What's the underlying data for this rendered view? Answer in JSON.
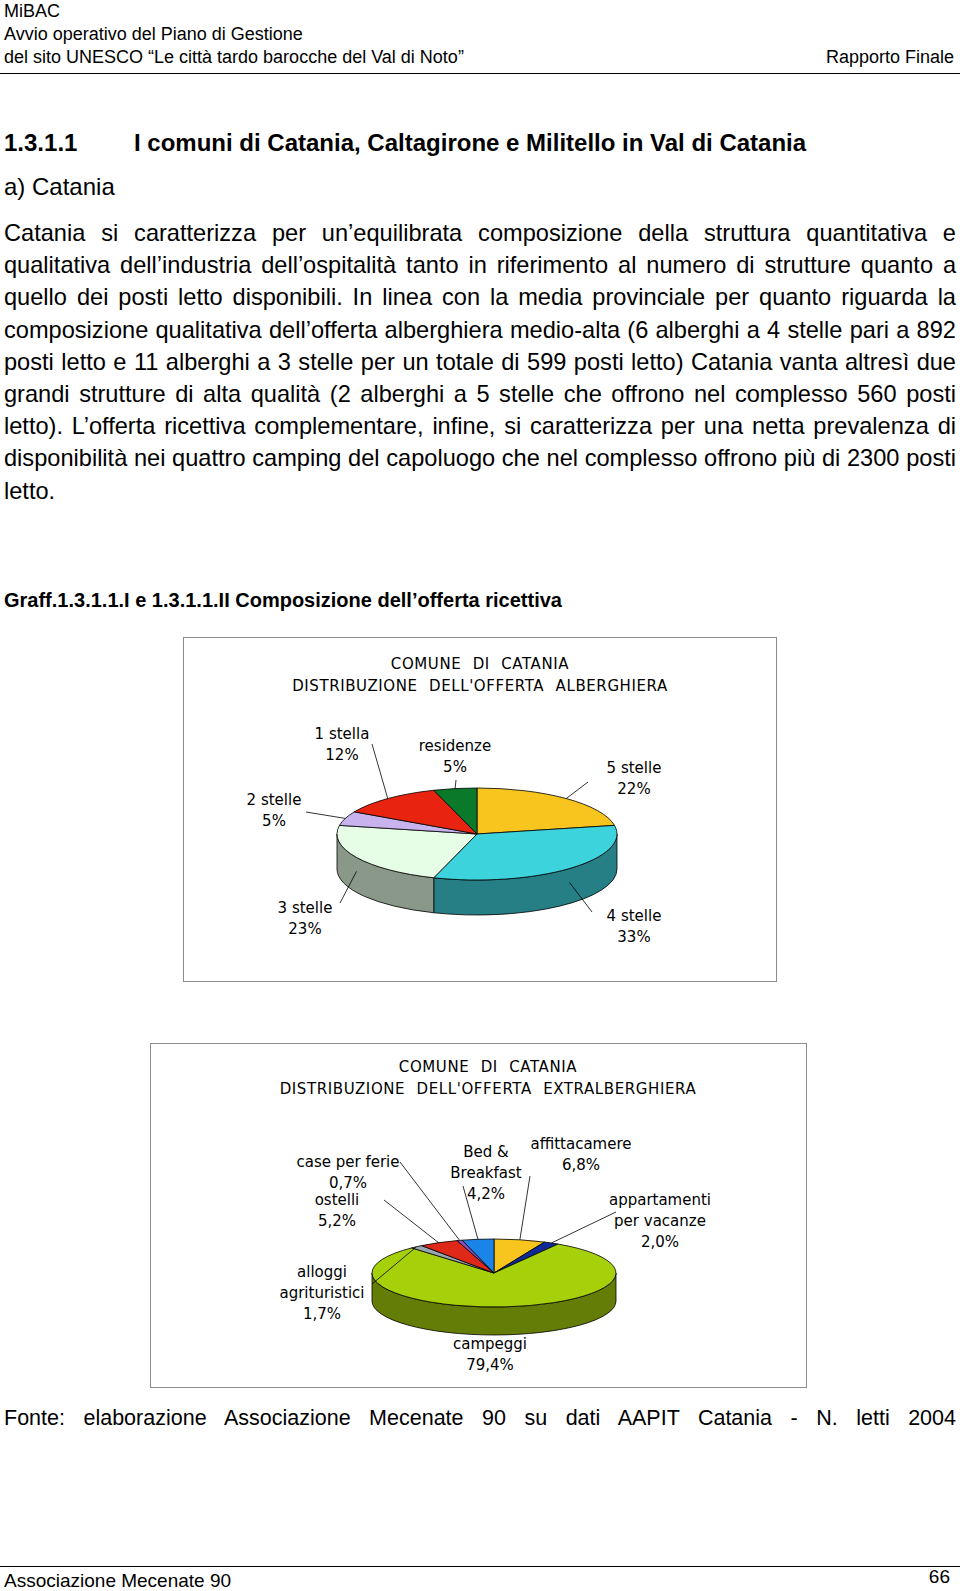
{
  "header": {
    "org": "MiBAC",
    "line1": "Avvio operativo del Piano di Gestione",
    "line2": "del sito UNESCO “Le città tardo barocche del Val di Noto”",
    "report": "Rapporto Finale"
  },
  "section": {
    "number": "1.3.1.1",
    "title": "I comuni di Catania, Caltagirone e Militello in Val di Catania",
    "subsection": "a) Catania",
    "paragraph": "Catania si caratterizza per un’equilibrata composizione della struttura quantitativa e qualitativa dell’industria dell’ospitalità tanto in riferimento al numero di strutture quanto a quello dei posti letto disponibili. In linea con la media provinciale per quanto riguarda la composizione qualitativa dell’offerta alberghiera medio-alta (6 alberghi a 4 stelle pari a 892 posti letto e 11 alberghi a 3 stelle per un totale di 599 posti letto) Catania vanta altresì due grandi strutture di alta qualità (2 alberghi a 5 stelle che offrono nel complesso 560 posti letto). L’offerta ricettiva complementare, infine, si caratterizza per una netta prevalenza di disponibilità nei quattro camping del capoluogo che nel complesso offrono più di 2300 posti letto."
  },
  "figure_caption": "Graff.1.3.1.1.I e 1.3.1.1.II Composizione dell’offerta ricettiva",
  "chart_data": [
    {
      "type": "pie",
      "title": "COMUNE DI CATANIA",
      "subtitle": "DISTRIBUZIONE DELL'OFFERTA ALBERGHIERA",
      "categories": [
        "5 stelle",
        "4 stelle",
        "3 stelle",
        "2 stelle",
        "1 stella",
        "residenze"
      ],
      "values": [
        22,
        33,
        23,
        5,
        12,
        5
      ],
      "value_labels": [
        "22%",
        "33%",
        "23%",
        "5%",
        "12%",
        "5%"
      ],
      "colors": [
        "#f7c51e",
        "#3dd3dc",
        "#e6fde6",
        "#c9b3ee",
        "#e8230f",
        "#0a7a2a"
      ],
      "data_labels": true
    },
    {
      "type": "pie",
      "title": "COMUNE DI CATANIA",
      "subtitle": "DISTRIBUZIONE DELL'OFFERTA EXTRALBERGHIERA",
      "categories": [
        "affittacamere",
        "appartamenti per vacanze",
        "campeggi",
        "alloggi agrituristici",
        "ostelli",
        "case per ferie",
        "Bed & Breakfast"
      ],
      "values": [
        6.8,
        2.0,
        79.4,
        1.7,
        5.2,
        0.7,
        4.2
      ],
      "value_labels": [
        "6,8%",
        "2,0%",
        "79,4%",
        "1,7%",
        "5,2%",
        "0,7%",
        "4,2%"
      ],
      "colors": [
        "#f7c51e",
        "#102a9a",
        "#a6d10a",
        "#9aa6b0",
        "#e02818",
        "#8a4cc0",
        "#1a84e8"
      ],
      "data_labels": true
    }
  ],
  "source": "Fonte: elaborazione Associazione Mecenate 90 su dati AAPIT Catania - N. letti 2004",
  "footer": {
    "left": "Associazione Mecenate 90",
    "page": "66"
  }
}
